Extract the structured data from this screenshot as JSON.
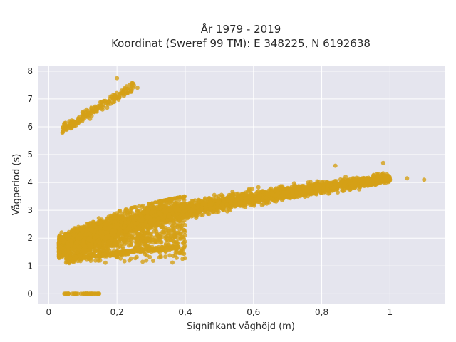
{
  "chart_data": {
    "type": "scatter",
    "title_line1": "År 1979 - 2019",
    "title_line2": "Koordinat (Sweref 99 TM): E 348225, N 6192638",
    "xlabel": "Signifikant våghöjd (m)",
    "ylabel": "Vågperiod (s)",
    "xlim": [
      -0.03,
      1.16
    ],
    "ylim": [
      -0.35,
      8.2
    ],
    "x_ticks": [
      0,
      0.2,
      0.4,
      0.6,
      0.8,
      1
    ],
    "x_tick_labels": [
      "0",
      "0,2",
      "0,4",
      "0,6",
      "0,8",
      "1"
    ],
    "y_ticks": [
      0,
      1,
      2,
      3,
      4,
      5,
      6,
      7,
      8
    ],
    "y_tick_labels": [
      "0",
      "1",
      "2",
      "3",
      "4",
      "5",
      "6",
      "7",
      "8"
    ],
    "grid": true,
    "background": "#e5e5ee",
    "marker_color": "#d4a017",
    "clusters": [
      {
        "name": "main",
        "x_range": [
          0.03,
          1.0
        ],
        "y_center_fn": "1.25+2.9*x^0.55",
        "y_spread": 0.55,
        "density": "high"
      },
      {
        "name": "lower-band",
        "x_range": [
          0.05,
          0.38
        ],
        "y_center_fn": "1.2+1.3*x",
        "y_spread": 0.12,
        "density": "medium"
      },
      {
        "name": "upper-band",
        "x_range": [
          0.04,
          0.25
        ],
        "y_center_fn": "5.9+7.5*(x-0.04)",
        "y_spread": 0.25,
        "density": "low"
      },
      {
        "name": "zero-row",
        "x_range": [
          0.04,
          0.15
        ],
        "y": 0,
        "density": "low"
      }
    ],
    "outliers": [
      {
        "x": 1.1,
        "y": 4.1
      },
      {
        "x": 1.05,
        "y": 4.15
      },
      {
        "x": 1.0,
        "y": 4.1
      },
      {
        "x": 0.95,
        "y": 4.1
      },
      {
        "x": 0.92,
        "y": 4.15
      },
      {
        "x": 0.87,
        "y": 4.2
      },
      {
        "x": 0.84,
        "y": 4.6
      },
      {
        "x": 0.76,
        "y": 4.0
      },
      {
        "x": 0.2,
        "y": 7.75
      },
      {
        "x": 0.26,
        "y": 7.4
      },
      {
        "x": 0.98,
        "y": 4.7
      }
    ]
  }
}
